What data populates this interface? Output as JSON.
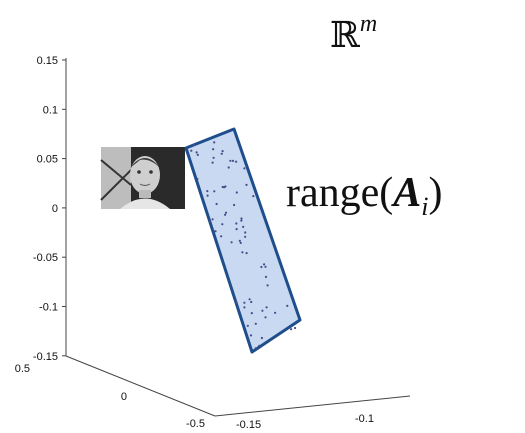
{
  "title": {
    "symbol": "ℝ",
    "superscript": "m"
  },
  "label": {
    "prefix": "range(",
    "matrix": "A",
    "subscript": "i",
    "suffix": ")"
  },
  "z_axis": {
    "ticks": [
      "0.15",
      "0.1",
      "0.05",
      "0",
      "-0.05",
      "-0.1",
      "-0.15"
    ]
  },
  "y_axis": {
    "ticks": [
      "0.5",
      "0",
      "-0.5"
    ]
  },
  "x_axis": {
    "ticks": [
      "-0.15",
      "-0.1"
    ]
  }
}
